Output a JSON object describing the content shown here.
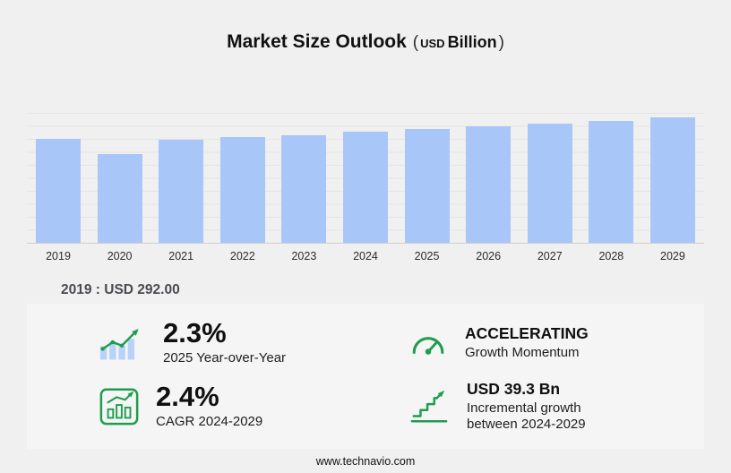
{
  "title": {
    "main": "Market Size Outlook",
    "paren_open": "(",
    "currency": "USD",
    "unit": "Billion",
    "paren_close": ")"
  },
  "chart_data": {
    "type": "bar",
    "title": "Market Size Outlook (USD Billion)",
    "categories": [
      "2019",
      "2020",
      "2021",
      "2022",
      "2023",
      "2024",
      "2025",
      "2026",
      "2027",
      "2028",
      "2029"
    ],
    "values": [
      292.0,
      250.0,
      290.0,
      297.0,
      303.0,
      312.4,
      319.6,
      327.0,
      335.0,
      343.5,
      351.7
    ],
    "xlabel": "",
    "ylabel": "USD Billion",
    "ylim": [
      0,
      365
    ],
    "grid": true,
    "legend": "none",
    "bar_color": "#a8c6f8"
  },
  "annotation": {
    "text": "2019 : USD 292.00"
  },
  "stats": [
    {
      "value": "2.3%",
      "label": "2025 Year-over-Year",
      "icon": "bar-chart-trend-icon"
    },
    {
      "value": "ACCELERATING",
      "label": "Growth Momentum",
      "icon": "speedometer-icon"
    },
    {
      "value": "2.4%",
      "label": "CAGR 2024-2029",
      "icon": "chart-growth-icon"
    },
    {
      "value": "USD 39.3 Bn",
      "label": "Incremental growth between 2024-2029",
      "icon": "stairs-growth-icon"
    }
  ],
  "footer": {
    "url": "www.technavio.com"
  },
  "colors": {
    "bar": "#a8c6f8",
    "bar_light": "#b9d2f8",
    "accent_green": "#1f9d4f",
    "page_bg": "#f0f0f0",
    "panel_bg": "#f5f5f5"
  }
}
